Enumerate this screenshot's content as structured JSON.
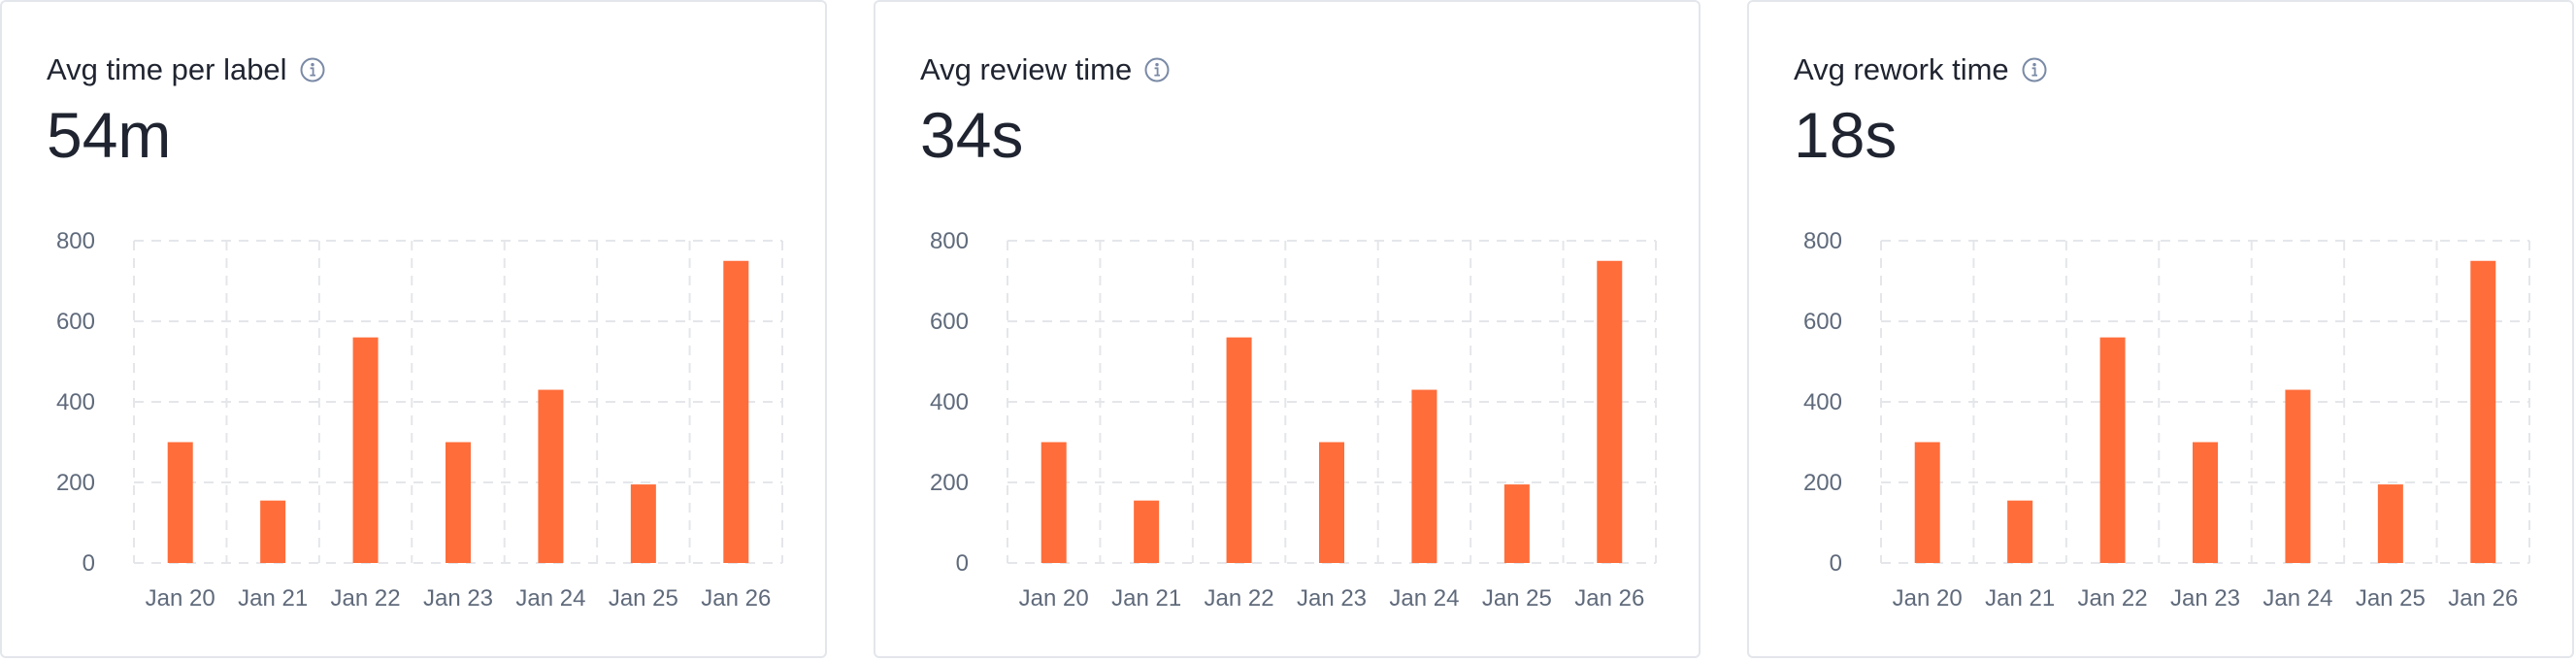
{
  "cards": [
    {
      "title": "Avg time per label",
      "value": "54m",
      "info_icon": "info-icon"
    },
    {
      "title": "Avg review time",
      "value": "34s",
      "info_icon": "info-icon"
    },
    {
      "title": "Avg rework time",
      "value": "18s",
      "info_icon": "info-icon"
    }
  ],
  "colors": {
    "bar": "#ff6d3a",
    "grid": "#e4e6ea",
    "tick": "#5f6a7b",
    "border": "#e3e6eb"
  },
  "chart_data": [
    {
      "type": "bar",
      "title": "",
      "xlabel": "",
      "ylabel": "",
      "categories": [
        "Jan 20",
        "Jan 21",
        "Jan 22",
        "Jan 23",
        "Jan 24",
        "Jan 25",
        "Jan 26"
      ],
      "values": [
        300,
        155,
        560,
        300,
        430,
        195,
        750
      ],
      "ylim": [
        0,
        800
      ],
      "yticks": [
        0,
        200,
        400,
        600,
        800
      ],
      "grid": true
    },
    {
      "type": "bar",
      "title": "",
      "xlabel": "",
      "ylabel": "",
      "categories": [
        "Jan 20",
        "Jan 21",
        "Jan 22",
        "Jan 23",
        "Jan 24",
        "Jan 25",
        "Jan 26"
      ],
      "values": [
        300,
        155,
        560,
        300,
        430,
        195,
        750
      ],
      "ylim": [
        0,
        800
      ],
      "yticks": [
        0,
        200,
        400,
        600,
        800
      ],
      "grid": true
    },
    {
      "type": "bar",
      "title": "",
      "xlabel": "",
      "ylabel": "",
      "categories": [
        "Jan 20",
        "Jan 21",
        "Jan 22",
        "Jan 23",
        "Jan 24",
        "Jan 25",
        "Jan 26"
      ],
      "values": [
        300,
        155,
        560,
        300,
        430,
        195,
        750
      ],
      "ylim": [
        0,
        800
      ],
      "yticks": [
        0,
        200,
        400,
        600,
        800
      ],
      "grid": true
    }
  ]
}
